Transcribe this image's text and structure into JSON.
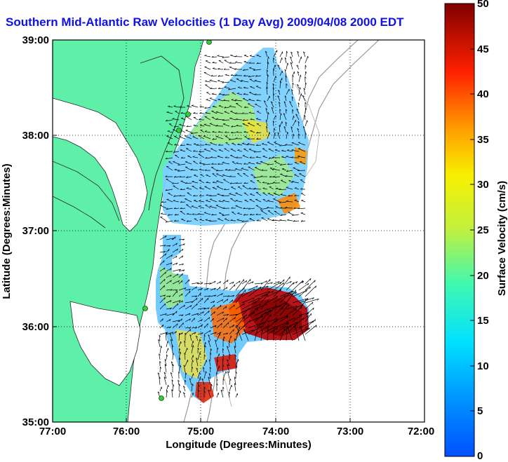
{
  "title": "Southern Mid-Atlantic Raw Velocities (1 Day Avg) 2009/04/08 2000 EDT",
  "map": {
    "xlabel": "Longitude (Degrees:Minutes)",
    "ylabel": "Latitude (Degrees:Minutes)",
    "x_ticks": [
      "77:00",
      "76:00",
      "75:00",
      "74:00",
      "73:00",
      "72:00"
    ],
    "y_ticks": [
      "39:00",
      "38:00",
      "37:00",
      "36:00",
      "35:00"
    ],
    "land_color": "#5ef0a8",
    "grid": "dotted"
  },
  "colorbar": {
    "label": "Surface Velocity (cm/s)",
    "ticks": [
      "50",
      "45",
      "40",
      "35",
      "30",
      "25",
      "20",
      "15",
      "10",
      "5",
      "0"
    ],
    "min": 0,
    "max": 50
  }
}
